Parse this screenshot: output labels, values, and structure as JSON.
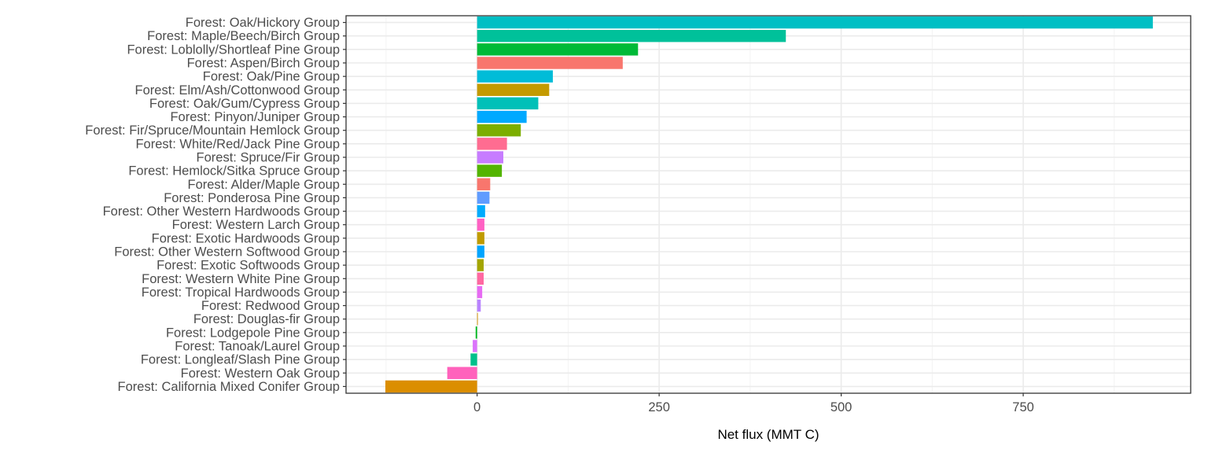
{
  "chart_data": {
    "type": "bar",
    "orientation": "horizontal",
    "categories": [
      "Forest: Oak/Hickory Group",
      "Forest: Maple/Beech/Birch Group",
      "Forest: Loblolly/Shortleaf Pine Group",
      "Forest: Aspen/Birch Group",
      "Forest: Oak/Pine Group",
      "Forest: Elm/Ash/Cottonwood Group",
      "Forest: Oak/Gum/Cypress Group",
      "Forest: Pinyon/Juniper Group",
      "Forest: Fir/Spruce/Mountain Hemlock Group",
      "Forest: White/Red/Jack Pine Group",
      "Forest: Spruce/Fir Group",
      "Forest: Hemlock/Sitka Spruce Group",
      "Forest: Alder/Maple Group",
      "Forest: Ponderosa Pine Group",
      "Forest: Other Western Hardwoods Group",
      "Forest: Western Larch Group",
      "Forest: Exotic Hardwoods Group",
      "Forest: Other Western Softwood Group",
      "Forest: Exotic Softwoods Group",
      "Forest: Western White Pine Group",
      "Forest: Tropical Hardwoods Group",
      "Forest: Redwood Group",
      "Forest: Douglas-fir Group",
      "Forest: Lodgepole Pine Group",
      "Forest: Tanoak/Laurel Group",
      "Forest: Longleaf/Slash Pine Group",
      "Forest: Western Oak Group",
      "Forest: California Mixed Conifer Group"
    ],
    "values": [
      928,
      424,
      221,
      200,
      104,
      99,
      84,
      68,
      60,
      41,
      36,
      34,
      18,
      17,
      11,
      10,
      10,
      10,
      9,
      9,
      7,
      5,
      1,
      -2,
      -6,
      -9,
      -41,
      -126
    ],
    "colors": [
      "#00BFC4",
      "#00C19A",
      "#00BA38",
      "#F8766D",
      "#00BCD8",
      "#C49A00",
      "#00C0B8",
      "#00A9FF",
      "#7CAE00",
      "#FF6C91",
      "#C77CFF",
      "#53B400",
      "#F8766D",
      "#619CFF",
      "#00ABFD",
      "#FF61C3",
      "#C09B00",
      "#00A5FF",
      "#A3A500",
      "#FF68A1",
      "#E76BF3",
      "#B983FF",
      "#D39200",
      "#00B81F",
      "#DB72FB",
      "#00C08B",
      "#FF62BC",
      "#DB8E00"
    ],
    "x_ticks": [
      0,
      250,
      500,
      750
    ],
    "xlim": [
      -180,
      980
    ],
    "xlabel": "Net flux (MMT C)",
    "ylabel": "",
    "title": "",
    "grid": true,
    "legend": "none"
  }
}
